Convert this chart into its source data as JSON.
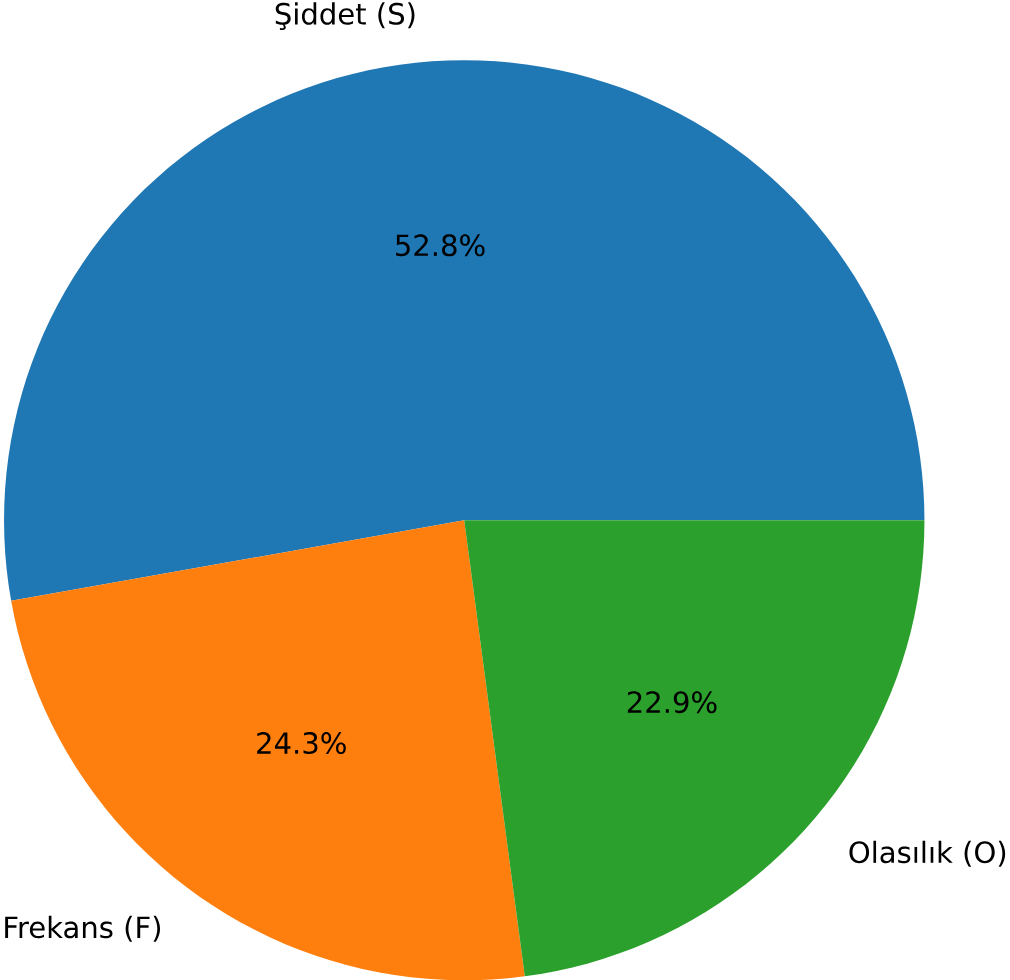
{
  "chart_data": {
    "type": "pie",
    "categories": [
      "Şiddet (S)",
      "Frekans (F)",
      "Olasılık (O)"
    ],
    "values": [
      52.8,
      24.3,
      22.9
    ],
    "value_labels": [
      "52.8%",
      "24.3%",
      "22.9%"
    ],
    "colors": [
      "#1f77b4",
      "#ff7f0e",
      "#2ca02c"
    ]
  }
}
